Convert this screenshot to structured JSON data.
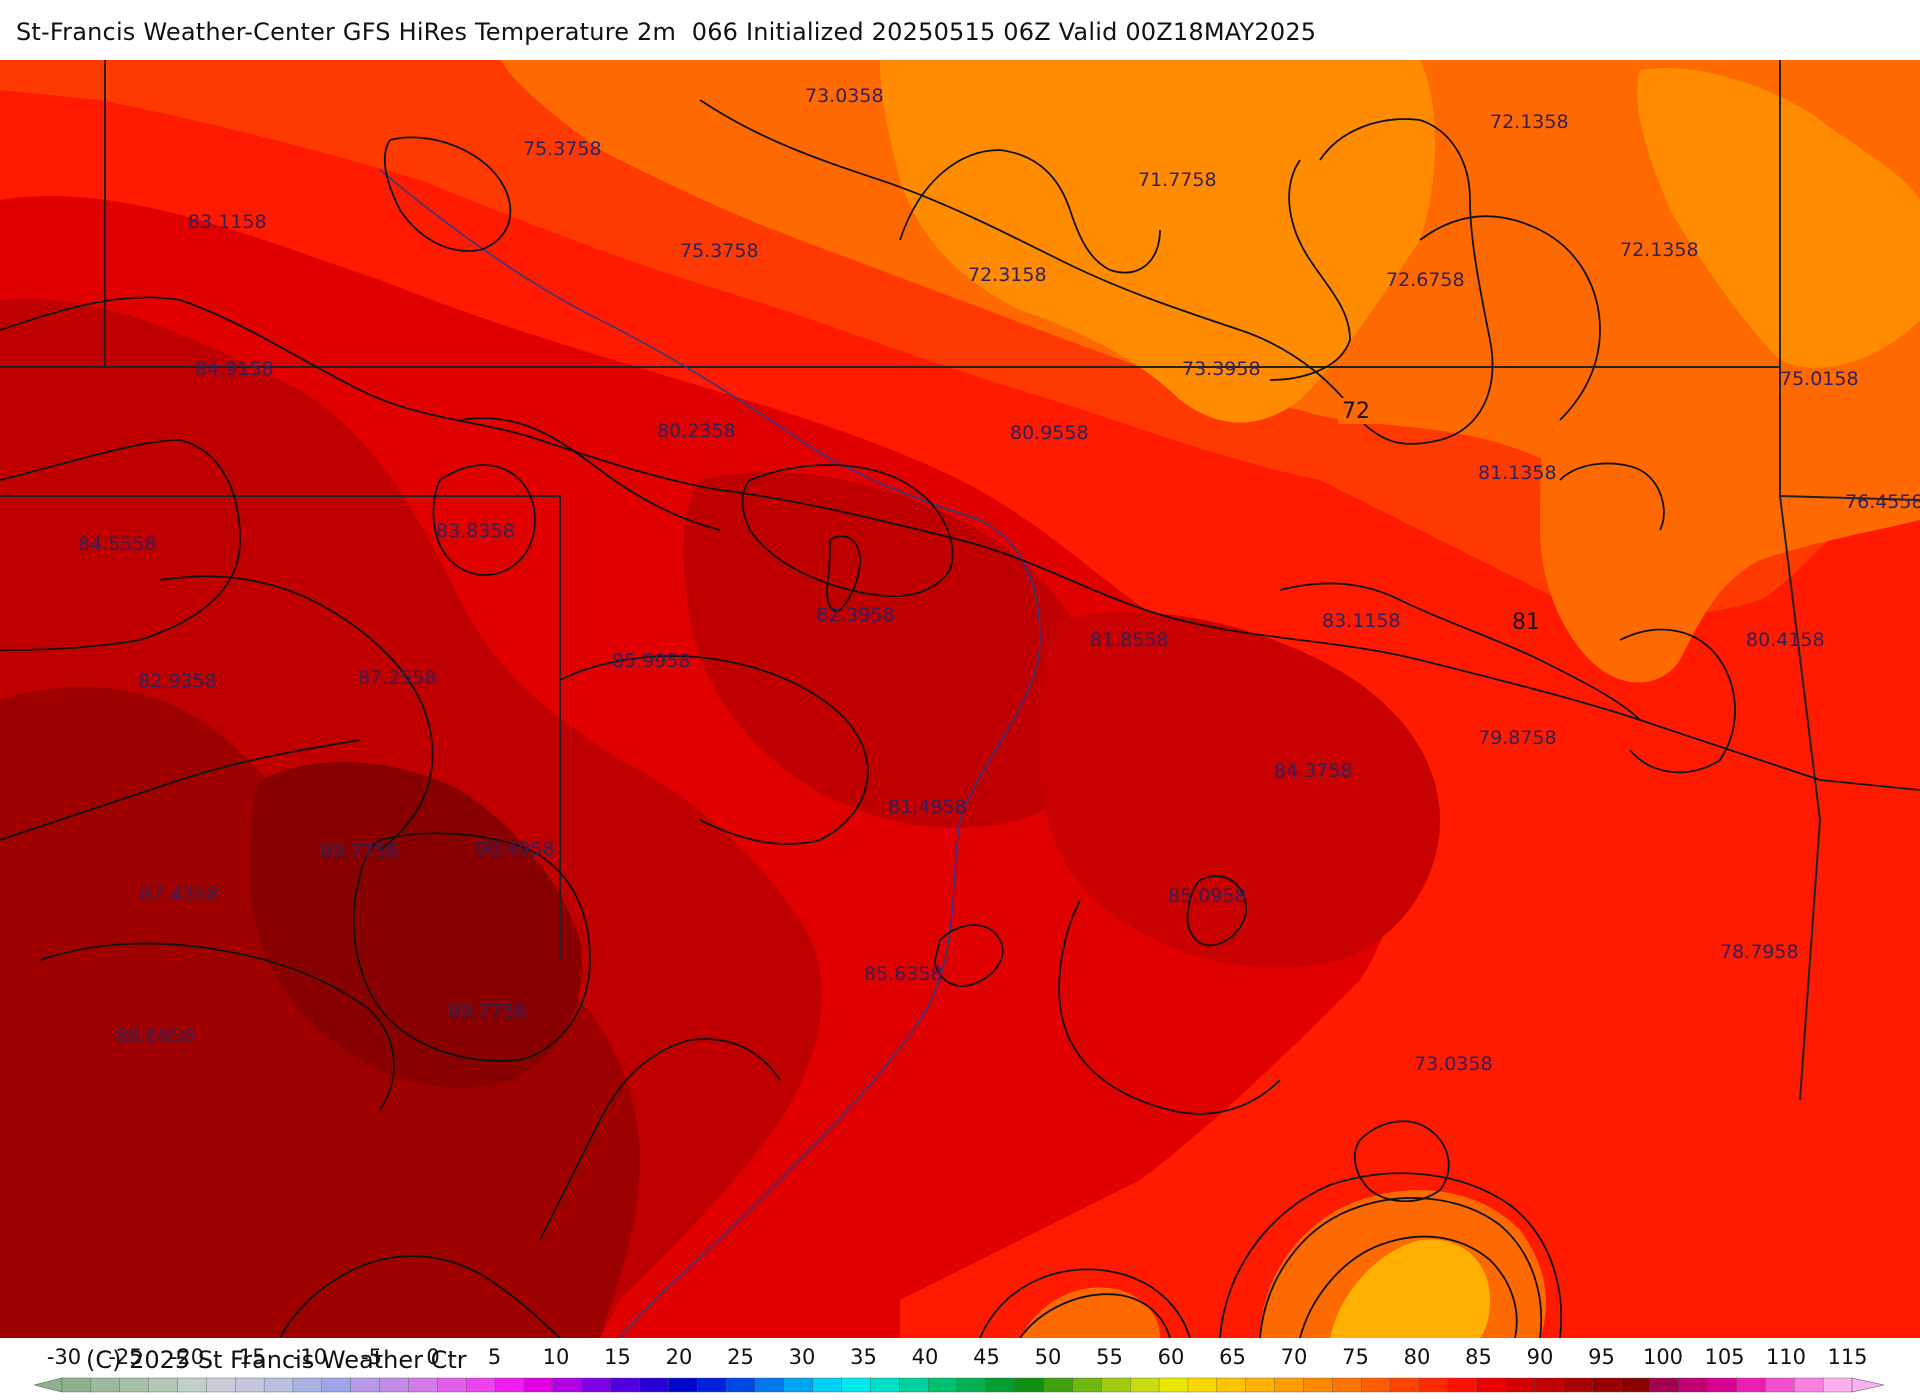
{
  "header": {
    "title": "St-Francis Weather-Center GFS HiRes Temperature 2m  066 Initialized 20250515 06Z Valid 00Z18MAY2025"
  },
  "footer": {
    "copyright": "(C) 2025 St Francis Weather Ctr"
  },
  "colors": {
    "deep_orange": "#ff8c00",
    "orange": "#ff6a00",
    "red_orange": "#ff3a00",
    "red": "#ff1a00",
    "crimson": "#e00000",
    "dark_red": "#c00000",
    "maroon": "#9e0000",
    "label_text": "#33205a",
    "contour": "#111111",
    "border": "#222222",
    "river": "#2a3a8a"
  },
  "map": {
    "point_labels": [
      "73.0358",
      "75.3758",
      "83.1158",
      "75.3758",
      "71.7758",
      "72.1358",
      "72.3158",
      "72.6758",
      "72.1358",
      "84.9158",
      "73.3958",
      "75.0158",
      "80.2358",
      "80.9558",
      "81.1358",
      "76.4558",
      "84.5558",
      "83.8358",
      "82.3958",
      "81.8558",
      "83.1158",
      "80.4158",
      "82.9358",
      "87.2558",
      "85.9958",
      "79.8758",
      "84.3758",
      "81.4958",
      "89.7758",
      "90.4958",
      "87.4358",
      "85.0958",
      "78.7958",
      "85.6358",
      "89.7758",
      "88.6958",
      "73.0358"
    ],
    "contour_labels": [
      "72",
      "81"
    ]
  },
  "legend": {
    "ticks": [
      "-30",
      "-25",
      "-20",
      "-15",
      "-10",
      "-5",
      "0",
      "5",
      "10",
      "15",
      "20",
      "25",
      "30",
      "35",
      "40",
      "45",
      "50",
      "55",
      "60",
      "65",
      "70",
      "75",
      "80",
      "85",
      "90",
      "95",
      "100",
      "105",
      "110",
      "115"
    ],
    "colors": [
      "#8fb08f",
      "#9db89d",
      "#a9c0a9",
      "#b4c8b4",
      "#c1cfc9",
      "#c9cfd8",
      "#c3c8dc",
      "#b8bfe0",
      "#aab3e4",
      "#9ea6e8",
      "#b59be6",
      "#c38ce8",
      "#d27ae8",
      "#e060ea",
      "#ec44ec",
      "#f020f0",
      "#e000e0",
      "#b000e6",
      "#8000e6",
      "#5000e0",
      "#2a00d8",
      "#0008d0",
      "#0022dc",
      "#0048e4",
      "#0078ec",
      "#00a4f2",
      "#00cff6",
      "#00e8f0",
      "#00e0c8",
      "#00d0a0",
      "#00c070",
      "#00b050",
      "#00a030",
      "#109010",
      "#40a010",
      "#70b810",
      "#a0cc10",
      "#c8dc10",
      "#e8e800",
      "#f8d800",
      "#ffc400",
      "#ffb000",
      "#ff9c00",
      "#ff8800",
      "#ff7400",
      "#ff5e00",
      "#ff4400",
      "#ff2a00",
      "#ff1000",
      "#ea0000",
      "#d40000",
      "#be0000",
      "#a80000",
      "#960000",
      "#880000",
      "#a00050",
      "#c00070",
      "#d80090",
      "#ec20b0",
      "#f450d0",
      "#f880e0",
      "#fcb0f0"
    ]
  }
}
